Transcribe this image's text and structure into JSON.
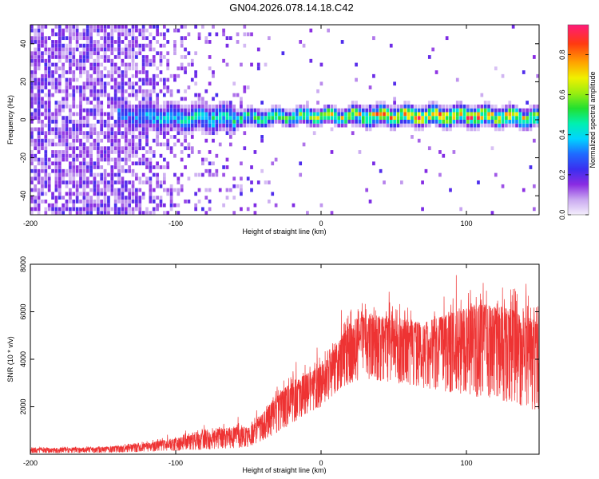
{
  "title": "GN04.2026.078.14.18.C42",
  "chart_data": [
    {
      "type": "heatmap",
      "xlabel": "Height of straight line (km)",
      "ylabel": "Frequency (Hz)",
      "xlim": [
        -200,
        150
      ],
      "ylim": [
        -50,
        50
      ],
      "xticks": [
        -200,
        -100,
        0,
        100
      ],
      "yticks": [
        -40,
        -20,
        0,
        20,
        40
      ],
      "colorbar": {
        "label": "Normalized spectral amplitude",
        "range": [
          0,
          0.95
        ],
        "ticks": [
          0.0,
          0.2,
          0.4,
          0.6,
          0.8
        ]
      },
      "description_points": {
        "noise_region_x": [
          -200,
          -95
        ],
        "tone_center_hz": [
          [
            -130,
            1
          ],
          [
            -100,
            0
          ],
          [
            -50,
            0
          ],
          [
            0,
            1
          ],
          [
            50,
            1
          ],
          [
            100,
            1
          ],
          [
            150,
            0
          ]
        ],
        "tone_peak_amplitude": [
          [
            -130,
            0.35
          ],
          [
            -100,
            0.45
          ],
          [
            -50,
            0.55
          ],
          [
            0,
            0.7
          ],
          [
            50,
            0.85
          ],
          [
            100,
            0.9
          ],
          [
            150,
            0.75
          ]
        ]
      }
    },
    {
      "type": "line",
      "xlabel": "Height of straight line (km)",
      "ylabel": "SNR (10 * v/v)",
      "xlim": [
        -200,
        150
      ],
      "ylim": [
        0,
        8000
      ],
      "xticks": [
        -200,
        -100,
        0,
        100
      ],
      "yticks": [
        2000,
        4000,
        6000,
        8000
      ],
      "color": "#ee3333",
      "envelope": {
        "x": [
          -200,
          -150,
          -125,
          -100,
          -80,
          -60,
          -50,
          -40,
          -30,
          -20,
          -10,
          0,
          10,
          20,
          30,
          50,
          70,
          90,
          110,
          130,
          150
        ],
        "low": [
          50,
          60,
          100,
          150,
          200,
          250,
          300,
          600,
          900,
          1300,
          1700,
          2000,
          2600,
          3000,
          3200,
          3000,
          2800,
          2600,
          2400,
          2200,
          1800
        ],
        "high": [
          300,
          350,
          500,
          800,
          1100,
          1400,
          1300,
          2000,
          2900,
          3500,
          3800,
          4100,
          5000,
          6200,
          6600,
          6400,
          6200,
          6800,
          7300,
          7100,
          6500
        ]
      }
    }
  ]
}
